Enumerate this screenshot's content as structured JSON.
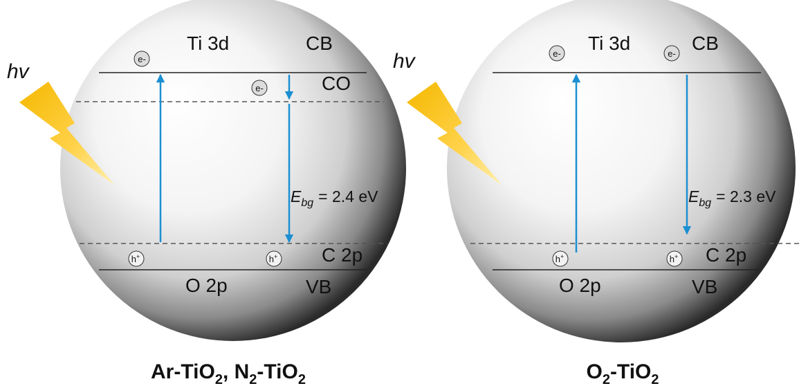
{
  "panels": [
    {
      "photon": "hv",
      "ti_3d": "Ti 3d",
      "cb": "CB",
      "co": "CO",
      "electron": "e-",
      "hole": {
        "symbol": "h",
        "charge": "+"
      },
      "band_gap": {
        "symbol": "E",
        "subscript": "bg",
        "text": "= 2.4 eV"
      },
      "c_2p": "C 2p",
      "o_2p": "O 2p",
      "vb": "VB",
      "caption": [
        {
          "text": "Ar-TiO"
        },
        {
          "sub": "2"
        },
        {
          "text": ", N"
        },
        {
          "sub": "2"
        },
        {
          "text": "-TiO"
        },
        {
          "sub": "2"
        }
      ]
    },
    {
      "photon": "hv",
      "ti_3d": "Ti 3d",
      "cb": "CB",
      "electron": "e-",
      "hole": {
        "symbol": "h",
        "charge": "+"
      },
      "band_gap": {
        "symbol": "E",
        "subscript": "bg",
        "text": "= 2.3 eV"
      },
      "c_2p": "C 2p",
      "o_2p": "O 2p",
      "vb": "VB",
      "caption": [
        {
          "text": "O"
        },
        {
          "sub": "2"
        },
        {
          "text": "-TiO"
        },
        {
          "sub": "2"
        }
      ]
    }
  ]
}
